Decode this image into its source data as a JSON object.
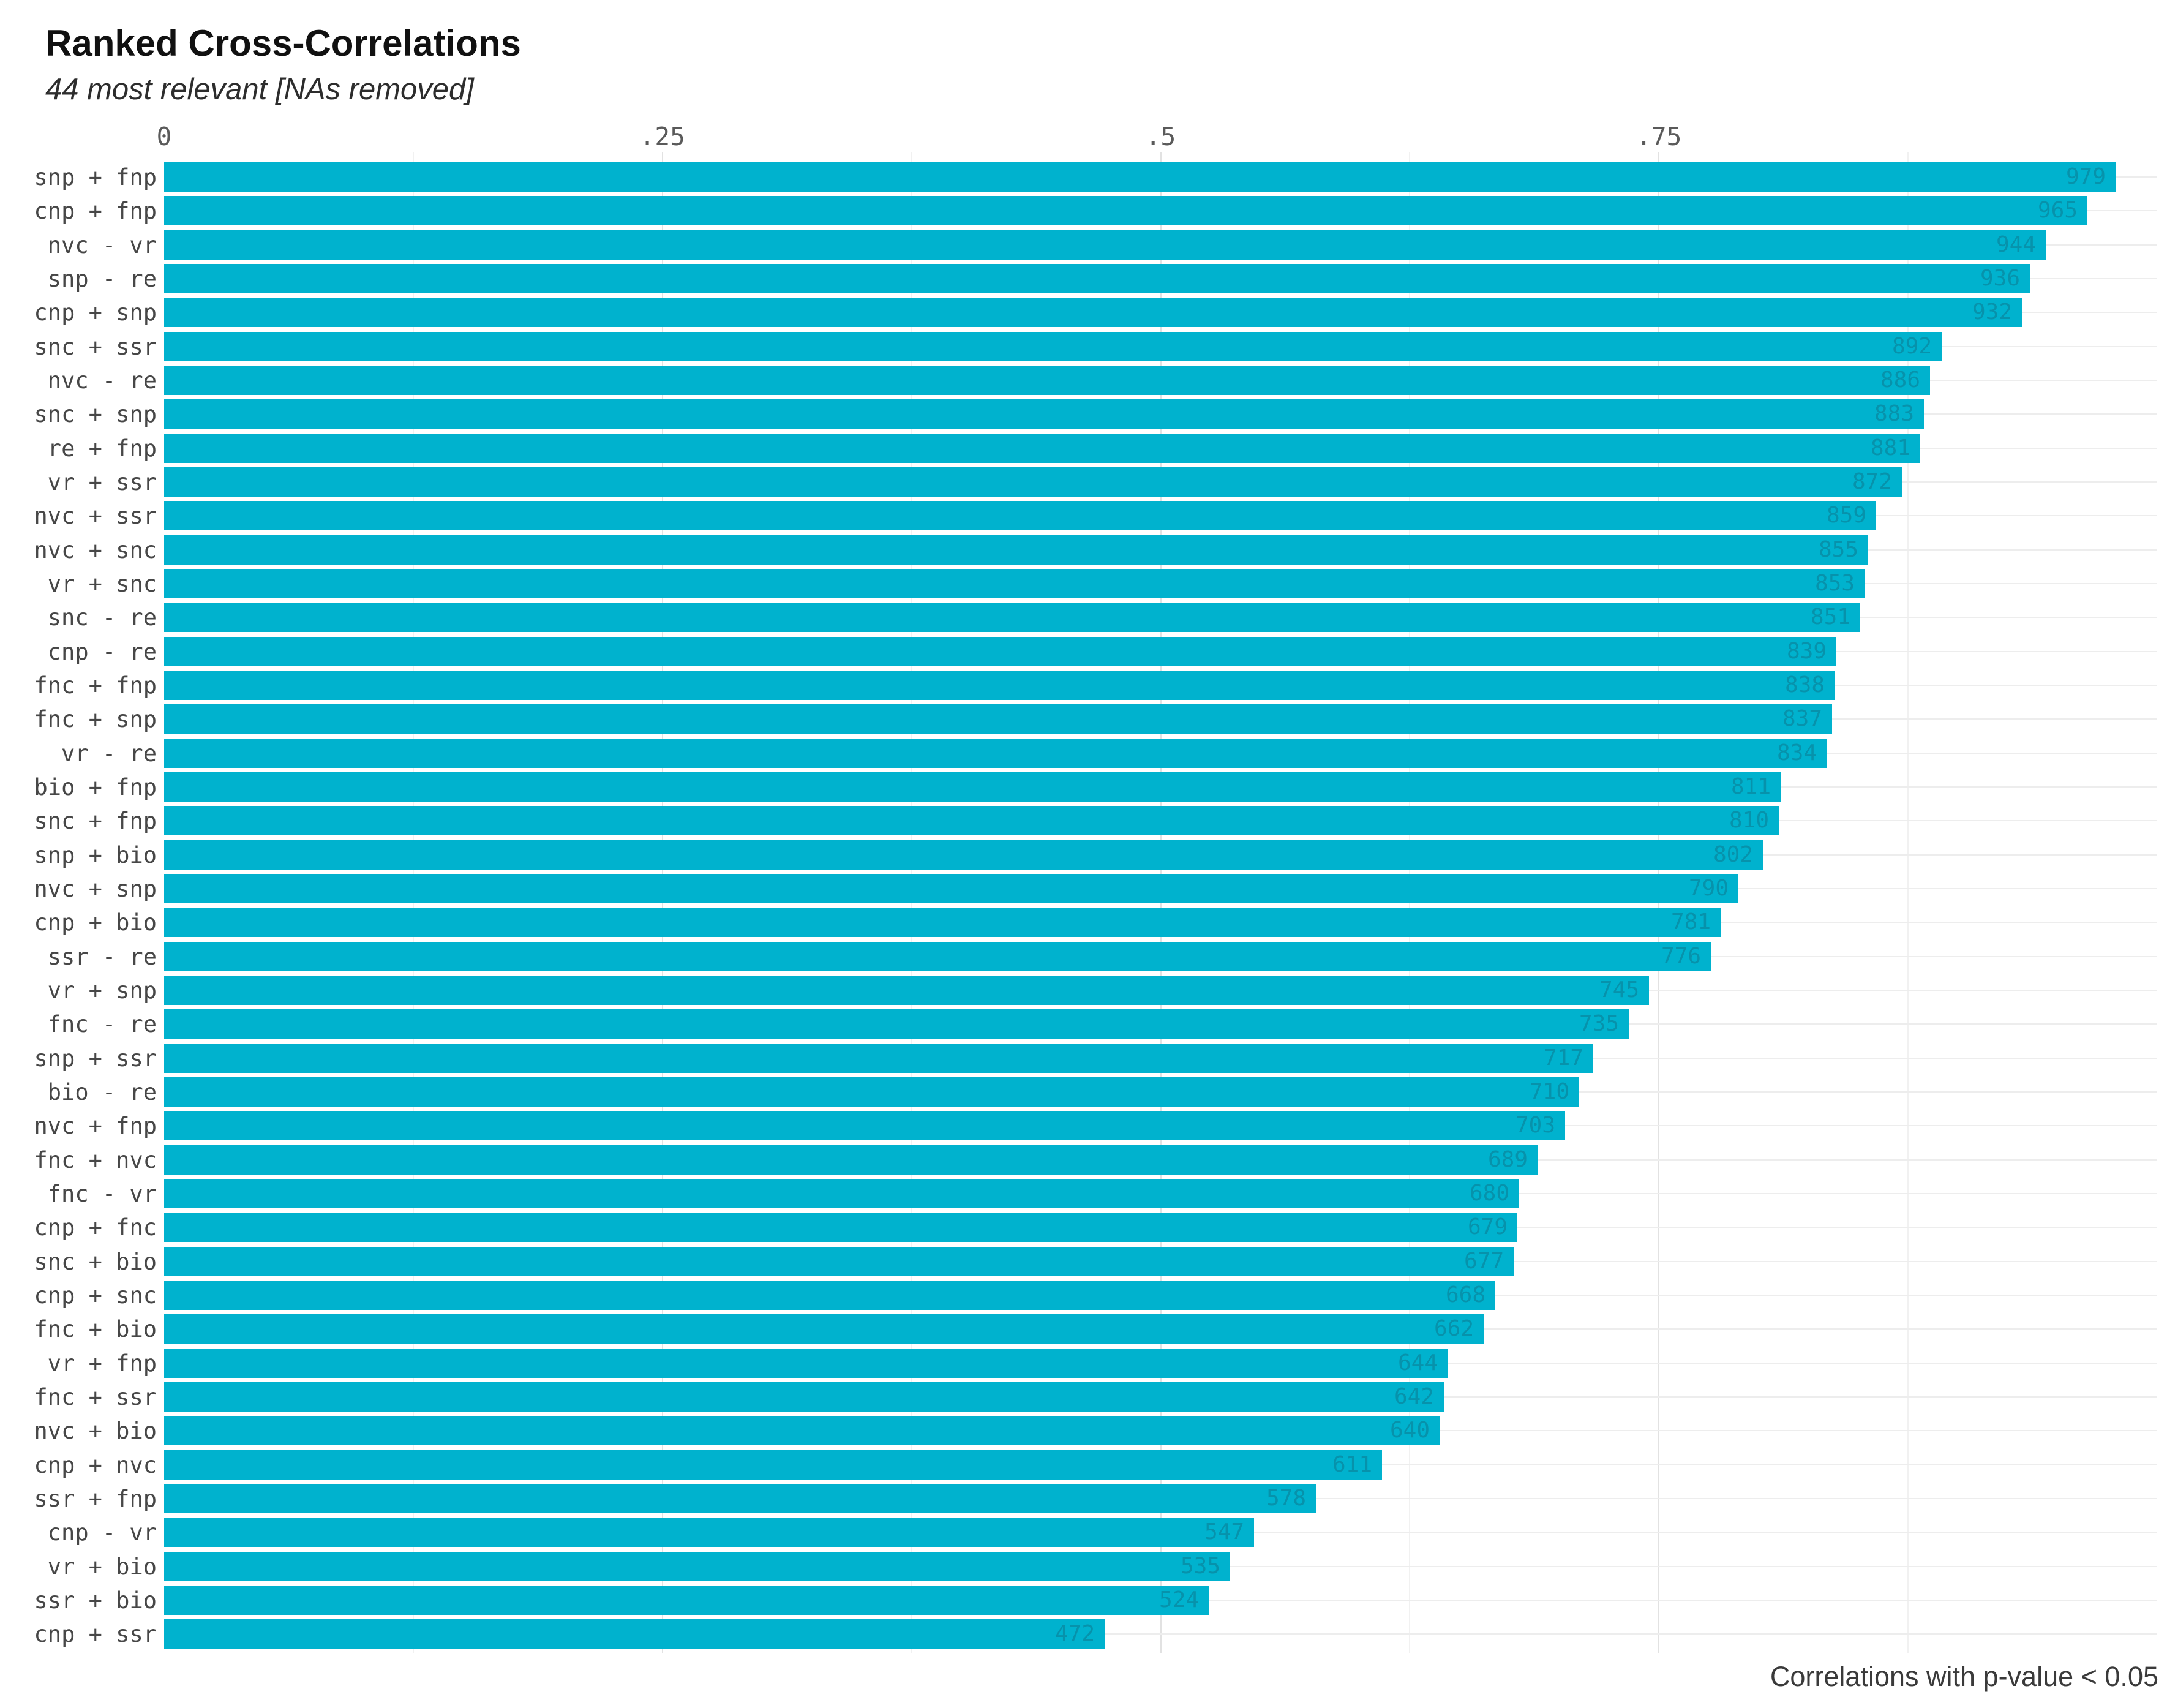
{
  "header": {
    "title": "Ranked Cross-Correlations",
    "subtitle": "44 most relevant [NAs removed]"
  },
  "caption": "Correlations with p-value < 0.05",
  "colors": {
    "bar_fill": "#00b2ce",
    "bar_value_label": "#0792ab",
    "grid_major": "#e2e2e2",
    "grid_minor": "#f1f1f1",
    "title": "#111111",
    "axis_text": "#5a5a5a",
    "category_text": "#474747"
  },
  "chart_data": {
    "type": "bar",
    "orientation": "horizontal",
    "title": "Ranked Cross-Correlations",
    "subtitle": "44 most relevant [NAs removed]",
    "caption": "Correlations with p-value < 0.05",
    "xlabel": "",
    "ylabel": "",
    "xlim": [
      0,
      1.0
    ],
    "x_axis": {
      "position": "top",
      "tick_values": [
        0,
        0.25,
        0.5,
        0.75
      ],
      "tick_labels": [
        "0",
        ".25",
        ".5",
        ".75"
      ],
      "minor_tick_values": [
        0.125,
        0.375,
        0.625,
        0.875
      ]
    },
    "grid": true,
    "legend_position": "none",
    "bars": [
      {
        "pair": "snp + fnp",
        "var1": "snp",
        "sign": "+",
        "var2": "fnp",
        "value": 0.979,
        "value_label": "979"
      },
      {
        "pair": "cnp + fnp",
        "var1": "cnp",
        "sign": "+",
        "var2": "fnp",
        "value": 0.965,
        "value_label": "965"
      },
      {
        "pair": "nvc - vr",
        "var1": "nvc",
        "sign": "-",
        "var2": "vr",
        "value": 0.944,
        "value_label": "944"
      },
      {
        "pair": "snp - re",
        "var1": "snp",
        "sign": "-",
        "var2": "re",
        "value": 0.936,
        "value_label": "936"
      },
      {
        "pair": "cnp + snp",
        "var1": "cnp",
        "sign": "+",
        "var2": "snp",
        "value": 0.932,
        "value_label": "932"
      },
      {
        "pair": "snc + ssr",
        "var1": "snc",
        "sign": "+",
        "var2": "ssr",
        "value": 0.892,
        "value_label": "892"
      },
      {
        "pair": "nvc - re",
        "var1": "nvc",
        "sign": "-",
        "var2": "re",
        "value": 0.886,
        "value_label": "886"
      },
      {
        "pair": "snc + snp",
        "var1": "snc",
        "sign": "+",
        "var2": "snp",
        "value": 0.883,
        "value_label": "883"
      },
      {
        "pair": " re + fnp",
        "var1": "re",
        "sign": "+",
        "var2": "fnp",
        "value": 0.881,
        "value_label": "881"
      },
      {
        "pair": " vr + ssr",
        "var1": "vr",
        "sign": "+",
        "var2": "ssr",
        "value": 0.872,
        "value_label": "872"
      },
      {
        "pair": "nvc + ssr",
        "var1": "nvc",
        "sign": "+",
        "var2": "ssr",
        "value": 0.859,
        "value_label": "859"
      },
      {
        "pair": "nvc + snc",
        "var1": "nvc",
        "sign": "+",
        "var2": "snc",
        "value": 0.855,
        "value_label": "855"
      },
      {
        "pair": " vr + snc",
        "var1": "vr",
        "sign": "+",
        "var2": "snc",
        "value": 0.853,
        "value_label": "853"
      },
      {
        "pair": "snc - re",
        "var1": "snc",
        "sign": "-",
        "var2": "re",
        "value": 0.851,
        "value_label": "851"
      },
      {
        "pair": "cnp - re",
        "var1": "cnp",
        "sign": "-",
        "var2": "re",
        "value": 0.839,
        "value_label": "839"
      },
      {
        "pair": "fnc + fnp",
        "var1": "fnc",
        "sign": "+",
        "var2": "fnp",
        "value": 0.838,
        "value_label": "838"
      },
      {
        "pair": "fnc + snp",
        "var1": "fnc",
        "sign": "+",
        "var2": "snp",
        "value": 0.837,
        "value_label": "837"
      },
      {
        "pair": " vr - re",
        "var1": "vr",
        "sign": "-",
        "var2": "re",
        "value": 0.834,
        "value_label": "834"
      },
      {
        "pair": "bio + fnp",
        "var1": "bio",
        "sign": "+",
        "var2": "fnp",
        "value": 0.811,
        "value_label": "811"
      },
      {
        "pair": "snc + fnp",
        "var1": "snc",
        "sign": "+",
        "var2": "fnp",
        "value": 0.81,
        "value_label": "810"
      },
      {
        "pair": "snp + bio",
        "var1": "snp",
        "sign": "+",
        "var2": "bio",
        "value": 0.802,
        "value_label": "802"
      },
      {
        "pair": "nvc + snp",
        "var1": "nvc",
        "sign": "+",
        "var2": "snp",
        "value": 0.79,
        "value_label": "790"
      },
      {
        "pair": "cnp + bio",
        "var1": "cnp",
        "sign": "+",
        "var2": "bio",
        "value": 0.781,
        "value_label": "781"
      },
      {
        "pair": "ssr - re",
        "var1": "ssr",
        "sign": "-",
        "var2": "re",
        "value": 0.776,
        "value_label": "776"
      },
      {
        "pair": " vr + snp",
        "var1": "vr",
        "sign": "+",
        "var2": "snp",
        "value": 0.745,
        "value_label": "745"
      },
      {
        "pair": "fnc - re",
        "var1": "fnc",
        "sign": "-",
        "var2": "re",
        "value": 0.735,
        "value_label": "735"
      },
      {
        "pair": "snp + ssr",
        "var1": "snp",
        "sign": "+",
        "var2": "ssr",
        "value": 0.717,
        "value_label": "717"
      },
      {
        "pair": "bio - re",
        "var1": "bio",
        "sign": "-",
        "var2": "re",
        "value": 0.71,
        "value_label": "710"
      },
      {
        "pair": "nvc + fnp",
        "var1": "nvc",
        "sign": "+",
        "var2": "fnp",
        "value": 0.703,
        "value_label": "703"
      },
      {
        "pair": "fnc + nvc",
        "var1": "fnc",
        "sign": "+",
        "var2": "nvc",
        "value": 0.689,
        "value_label": "689"
      },
      {
        "pair": "fnc - vr",
        "var1": "fnc",
        "sign": "-",
        "var2": "vr",
        "value": 0.68,
        "value_label": "680"
      },
      {
        "pair": "cnp + fnc",
        "var1": "cnp",
        "sign": "+",
        "var2": "fnc",
        "value": 0.679,
        "value_label": "679"
      },
      {
        "pair": "snc + bio",
        "var1": "snc",
        "sign": "+",
        "var2": "bio",
        "value": 0.677,
        "value_label": "677"
      },
      {
        "pair": "cnp + snc",
        "var1": "cnp",
        "sign": "+",
        "var2": "snc",
        "value": 0.668,
        "value_label": "668"
      },
      {
        "pair": "fnc + bio",
        "var1": "fnc",
        "sign": "+",
        "var2": "bio",
        "value": 0.662,
        "value_label": "662"
      },
      {
        "pair": " vr + fnp",
        "var1": "vr",
        "sign": "+",
        "var2": "fnp",
        "value": 0.644,
        "value_label": "644"
      },
      {
        "pair": "fnc + ssr",
        "var1": "fnc",
        "sign": "+",
        "var2": "ssr",
        "value": 0.642,
        "value_label": "642"
      },
      {
        "pair": "nvc + bio",
        "var1": "nvc",
        "sign": "+",
        "var2": "bio",
        "value": 0.64,
        "value_label": "640"
      },
      {
        "pair": "cnp + nvc",
        "var1": "cnp",
        "sign": "+",
        "var2": "nvc",
        "value": 0.611,
        "value_label": "611"
      },
      {
        "pair": "ssr + fnp",
        "var1": "ssr",
        "sign": "+",
        "var2": "fnp",
        "value": 0.578,
        "value_label": "578"
      },
      {
        "pair": "cnp - vr",
        "var1": "cnp",
        "sign": "-",
        "var2": "vr",
        "value": 0.547,
        "value_label": "547"
      },
      {
        "pair": " vr + bio",
        "var1": "vr",
        "sign": "+",
        "var2": "bio",
        "value": 0.535,
        "value_label": "535"
      },
      {
        "pair": "ssr + bio",
        "var1": "ssr",
        "sign": "+",
        "var2": "bio",
        "value": 0.524,
        "value_label": "524"
      },
      {
        "pair": "cnp + ssr",
        "var1": "cnp",
        "sign": "+",
        "var2": "ssr",
        "value": 0.472,
        "value_label": "472"
      }
    ]
  }
}
